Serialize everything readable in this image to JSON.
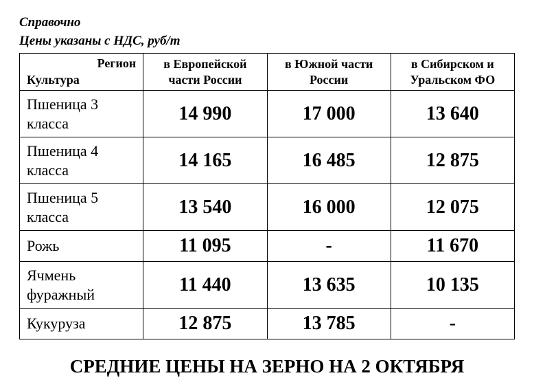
{
  "header": {
    "line1": "Справочно",
    "line2": "Цены указаны с НДС, руб/т"
  },
  "table": {
    "type": "table",
    "corner_top": "Регион",
    "corner_bottom": "Культура",
    "columns": [
      "в Европейской части России",
      "в Южной части России",
      "в Сибирском и Уральском ФО"
    ],
    "rows": [
      {
        "crop": "Пшеница 3 класса",
        "prices": [
          "14 990",
          "17 000",
          "13 640"
        ]
      },
      {
        "crop": "Пшеница 4 класса",
        "prices": [
          "14 165",
          "16 485",
          "12 875"
        ]
      },
      {
        "crop": "Пшеница 5 класса",
        "prices": [
          "13 540",
          "16 000",
          "12 075"
        ]
      },
      {
        "crop": "Рожь",
        "prices": [
          "11 095",
          "-",
          "11 670"
        ]
      },
      {
        "crop": "Ячмень фуражный",
        "prices": [
          "11 440",
          "13 635",
          "10 135"
        ]
      },
      {
        "crop": "Кукуруза",
        "prices": [
          "12 875",
          "13 785",
          "-"
        ]
      }
    ],
    "border_color": "#000000",
    "background_color": "#ffffff",
    "header_fontsize": 18,
    "crop_fontsize": 22,
    "price_fontsize": 28
  },
  "footer": {
    "title": "СРЕДНИЕ ЦЕНЫ НА ЗЕРНО НА 2 ОКТЯБРЯ"
  }
}
